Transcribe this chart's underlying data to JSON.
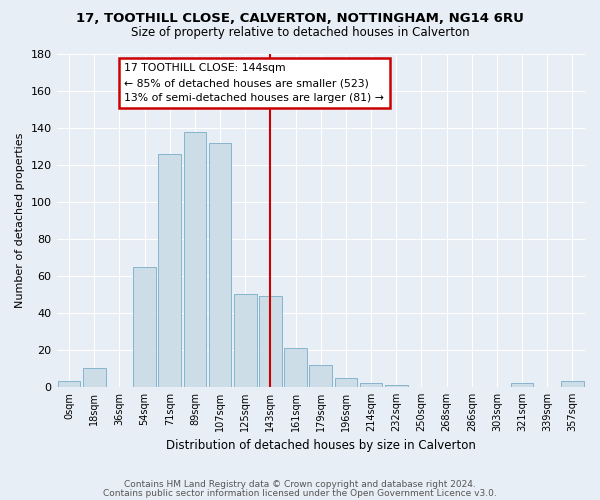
{
  "title": "17, TOOTHILL CLOSE, CALVERTON, NOTTINGHAM, NG14 6RU",
  "subtitle": "Size of property relative to detached houses in Calverton",
  "xlabel": "Distribution of detached houses by size in Calverton",
  "ylabel": "Number of detached properties",
  "bar_labels": [
    "0sqm",
    "18sqm",
    "36sqm",
    "54sqm",
    "71sqm",
    "89sqm",
    "107sqm",
    "125sqm",
    "143sqm",
    "161sqm",
    "179sqm",
    "196sqm",
    "214sqm",
    "232sqm",
    "250sqm",
    "268sqm",
    "286sqm",
    "303sqm",
    "321sqm",
    "339sqm",
    "357sqm"
  ],
  "bar_heights": [
    3,
    10,
    0,
    65,
    126,
    138,
    132,
    50,
    49,
    21,
    12,
    5,
    2,
    1,
    0,
    0,
    0,
    0,
    2,
    0,
    3
  ],
  "bar_color": "#ccdde8",
  "bar_edgecolor": "#7aacc8",
  "vline_color": "#cc0000",
  "annotation_title": "17 TOOTHILL CLOSE: 144sqm",
  "annotation_line1": "← 85% of detached houses are smaller (523)",
  "annotation_line2": "13% of semi-detached houses are larger (81) →",
  "annotation_box_color": "#cc0000",
  "ylim": [
    0,
    180
  ],
  "yticks": [
    0,
    20,
    40,
    60,
    80,
    100,
    120,
    140,
    160,
    180
  ],
  "footer1": "Contains HM Land Registry data © Crown copyright and database right 2024.",
  "footer2": "Contains public sector information licensed under the Open Government Licence v3.0.",
  "bg_color": "#e8eef5",
  "grid_color": "#ffffff"
}
